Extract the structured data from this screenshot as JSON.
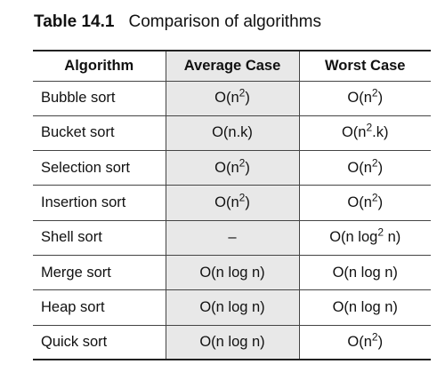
{
  "caption": {
    "label": "Table 14.1",
    "title": "Comparison of algorithms"
  },
  "table": {
    "headers": [
      "Algorithm",
      "Average Case",
      "Worst Case"
    ],
    "rows": [
      {
        "algorithm": "Bubble sort",
        "average": {
          "pre": "O(n",
          "sup": "2",
          "post": ")"
        },
        "worst": {
          "pre": "O(n",
          "sup": "2",
          "post": ")"
        }
      },
      {
        "algorithm": "Bucket sort",
        "average": {
          "pre": "O(n.k)",
          "sup": "",
          "post": ""
        },
        "worst": {
          "pre": "O(n",
          "sup": "2",
          "post": ".k)"
        }
      },
      {
        "algorithm": "Selection sort",
        "average": {
          "pre": "O(n",
          "sup": "2",
          "post": ")"
        },
        "worst": {
          "pre": "O(n",
          "sup": "2",
          "post": ")"
        }
      },
      {
        "algorithm": "Insertion sort",
        "average": {
          "pre": "O(n",
          "sup": "2",
          "post": ")"
        },
        "worst": {
          "pre": "O(n",
          "sup": "2",
          "post": ")"
        }
      },
      {
        "algorithm": "Shell sort",
        "average": {
          "pre": "–",
          "sup": "",
          "post": ""
        },
        "worst": {
          "pre": "O(n log",
          "sup": "2",
          "post": " n)"
        }
      },
      {
        "algorithm": "Merge sort",
        "average": {
          "pre": "O(n log n)",
          "sup": "",
          "post": ""
        },
        "worst": {
          "pre": "O(n log n)",
          "sup": "",
          "post": ""
        }
      },
      {
        "algorithm": "Heap sort",
        "average": {
          "pre": "O(n log n)",
          "sup": "",
          "post": ""
        },
        "worst": {
          "pre": "O(n log n)",
          "sup": "",
          "post": ""
        }
      },
      {
        "algorithm": "Quick sort",
        "average": {
          "pre": "O(n log n)",
          "sup": "",
          "post": ""
        },
        "worst": {
          "pre": "O(n",
          "sup": "2",
          "post": ")"
        }
      }
    ]
  },
  "colors": {
    "highlight_column": "#e8e8e8",
    "rule": "#222222"
  }
}
